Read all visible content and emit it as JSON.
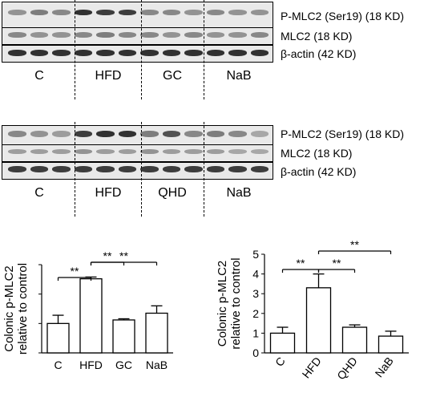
{
  "blot_panel_1": {
    "rows": [
      "P-MLC2 (Ser19) (18 KD)",
      "MLC2 (18 KD)",
      "β-actin (42 KD)"
    ],
    "groups": [
      "C",
      "HFD",
      "GC",
      "NaB"
    ]
  },
  "blot_panel_2": {
    "rows": [
      "P-MLC2 (Ser19) (18 KD)",
      "MLC2 (18 KD)",
      "β-actin (42 KD)"
    ],
    "groups": [
      "C",
      "HFD",
      "QHD",
      "NaB"
    ]
  },
  "chart_data": [
    {
      "type": "bar",
      "categories": [
        "C",
        "HFD",
        "GC",
        "NaB"
      ],
      "values": [
        1.0,
        2.52,
        1.12,
        1.35
      ],
      "errors": [
        0.28,
        0.06,
        0.04,
        0.25
      ],
      "ylabel": "Colonic p-MLC2 relative to control",
      "ylabel_lines": [
        "Colonic p-MLC2",
        "relative to control"
      ],
      "ylim": [
        0,
        3
      ],
      "yticks": [],
      "significance": [
        {
          "from": 0,
          "to": 1,
          "label": "**"
        },
        {
          "from": 1,
          "to": 2,
          "label": "**"
        },
        {
          "from": 1,
          "to": 3,
          "label": "**"
        }
      ]
    },
    {
      "type": "bar",
      "categories": [
        "C",
        "HFD",
        "QHD",
        "NaB"
      ],
      "values": [
        1.0,
        3.3,
        1.3,
        0.85
      ],
      "errors": [
        0.3,
        0.7,
        0.12,
        0.25
      ],
      "ylabel": "Colonic p-MLC2 relative to control",
      "ylabel_lines": [
        "Colonic p-MLC2",
        "relative to control"
      ],
      "ylim": [
        0,
        5
      ],
      "yticks": [
        "0",
        "1",
        "2",
        "3",
        "4",
        "5"
      ],
      "significance": [
        {
          "from": 0,
          "to": 1,
          "label": "**"
        },
        {
          "from": 1,
          "to": 2,
          "label": "**"
        },
        {
          "from": 1,
          "to": 3,
          "label": "**"
        }
      ]
    }
  ]
}
